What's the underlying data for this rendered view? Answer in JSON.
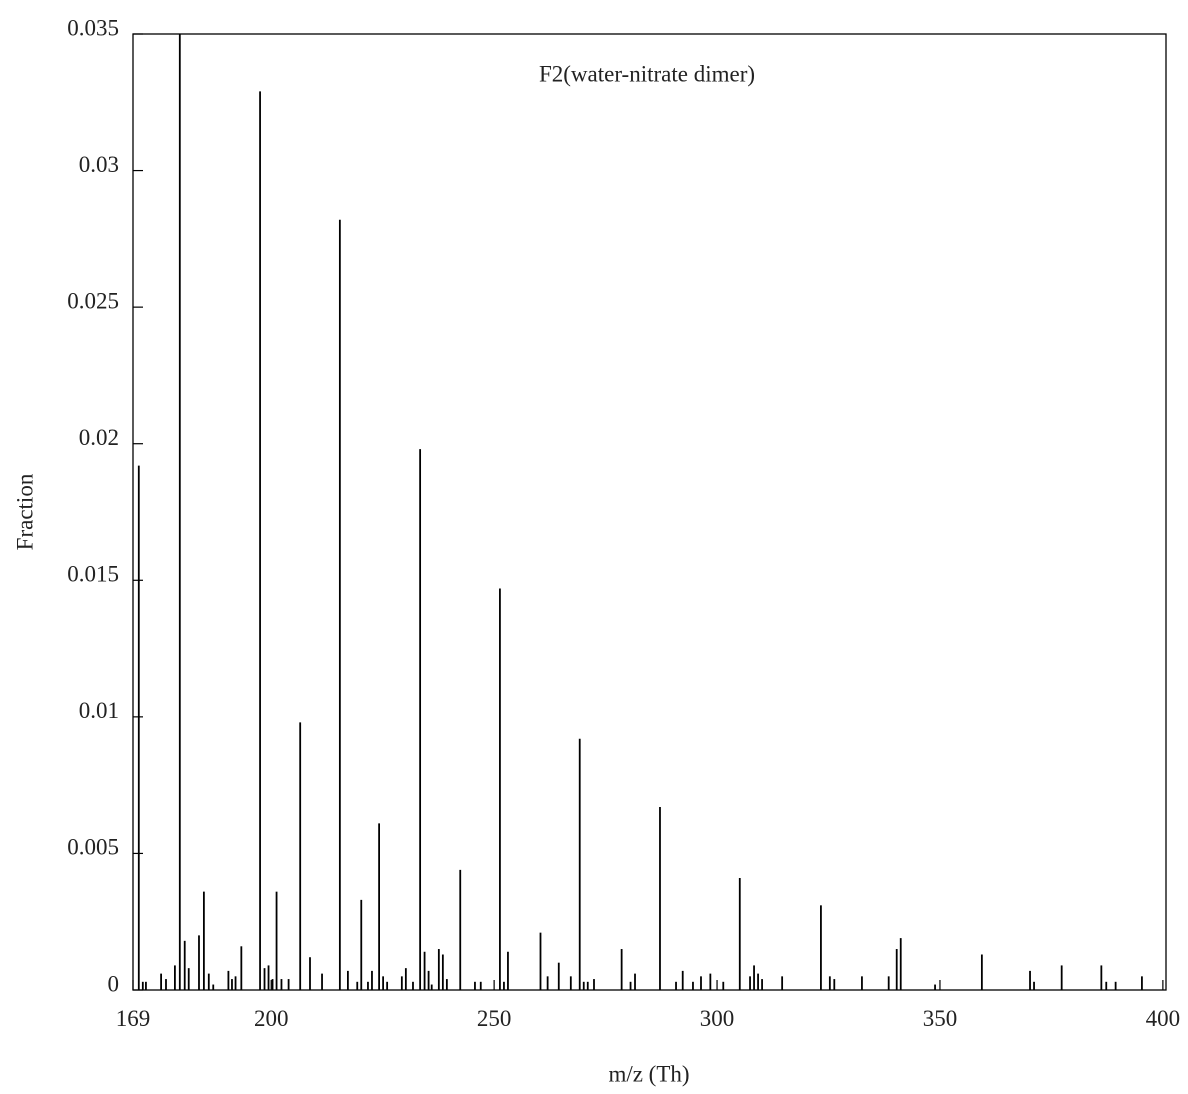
{
  "chart_data": {
    "type": "stem",
    "title": "F2(water-nitrate dimer)",
    "x_label": "m/z (Th)",
    "y_label": "Fraction",
    "color": "#000000",
    "xlim": [
      169,
      400.7
    ],
    "ylim": [
      0,
      0.035
    ],
    "xticks": [
      169,
      200,
      250,
      300,
      350,
      400
    ],
    "yticks": [
      0,
      0.005,
      0.01,
      0.015,
      0.02,
      0.025,
      0.03,
      0.035
    ],
    "x": [
      170.3,
      171.2,
      171.9,
      175.3,
      176.4,
      178.4,
      179.5,
      180.6,
      181.5,
      183.8,
      184.9,
      186.0,
      187.0,
      190.4,
      191.2,
      192.0,
      193.3,
      197.5,
      198.5,
      199.4,
      200.3,
      201.2,
      202.3,
      203.9,
      206.5,
      208.7,
      211.4,
      215.4,
      217.2,
      219.3,
      220.2,
      221.7,
      222.6,
      224.2,
      225.1,
      226.0,
      229.3,
      230.2,
      231.8,
      233.4,
      234.4,
      235.3,
      236.0,
      237.6,
      238.5,
      239.4,
      242.4,
      245.7,
      247.0,
      251.3,
      252.2,
      253.1,
      260.4,
      262.0,
      264.5,
      267.2,
      269.2,
      270.1,
      271.0,
      272.4,
      278.6,
      280.6,
      281.6,
      287.2,
      290.8,
      292.3,
      294.6,
      296.4,
      298.5,
      301.4,
      305.1,
      307.4,
      308.3,
      309.2,
      310.1,
      314.6,
      323.3,
      325.3,
      326.3,
      332.5,
      338.5,
      340.3,
      341.2,
      348.9,
      359.4,
      370.2,
      371.1,
      377.3,
      386.2,
      387.3,
      389.4,
      395.3
    ],
    "values": [
      0.0192,
      0.0003,
      0.0003,
      0.0006,
      0.0004,
      0.0009,
      0.035,
      0.0018,
      0.0008,
      0.002,
      0.0036,
      0.0006,
      0.0002,
      0.0007,
      0.0004,
      0.0005,
      0.0016,
      0.0329,
      0.0008,
      0.0009,
      0.0004,
      0.0036,
      0.0004,
      0.0004,
      0.0098,
      0.0012,
      0.0006,
      0.0282,
      0.0007,
      0.0003,
      0.0033,
      0.0003,
      0.0007,
      0.0061,
      0.0005,
      0.0003,
      0.0005,
      0.0008,
      0.0003,
      0.0198,
      0.0014,
      0.0007,
      0.0002,
      0.0015,
      0.0013,
      0.0004,
      0.0044,
      0.0003,
      0.0003,
      0.0147,
      0.0003,
      0.0014,
      0.0021,
      0.0005,
      0.001,
      0.0005,
      0.0092,
      0.0003,
      0.0003,
      0.0004,
      0.0015,
      0.0003,
      0.0006,
      0.0067,
      0.0003,
      0.0007,
      0.0003,
      0.0005,
      0.0006,
      0.0003,
      0.0041,
      0.0005,
      0.0009,
      0.0006,
      0.0004,
      0.0005,
      0.0031,
      0.0005,
      0.0004,
      0.0005,
      0.0005,
      0.0015,
      0.0019,
      0.0002,
      0.0013,
      0.0007,
      0.0003,
      0.0009,
      0.0009,
      0.0003,
      0.0003,
      0.0005
    ]
  }
}
